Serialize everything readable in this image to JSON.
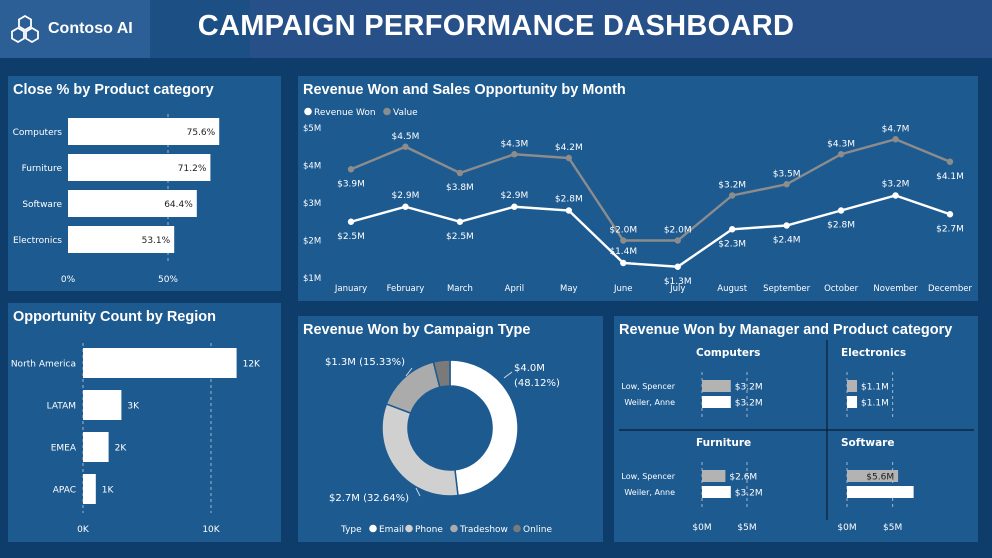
{
  "header": {
    "brand": "Contoso AI",
    "title": "CAMPAIGN PERFORMANCE DASHBOARD",
    "colors": {
      "background": "#0f3d6b",
      "panel": "#1d5a90",
      "header": "#1c4f84"
    }
  },
  "close_panel": {
    "title": "Close % by Product category",
    "chart_data": {
      "type": "bar",
      "orientation": "horizontal",
      "categories": [
        "Computers",
        "Furniture",
        "Software",
        "Electronics"
      ],
      "values": [
        75.6,
        71.2,
        64.4,
        53.1
      ],
      "value_labels": [
        "75.6%",
        "71.2%",
        "64.4%",
        "53.1%"
      ],
      "x_ticks": [
        "0%",
        "50%"
      ],
      "xlim": [
        0,
        100
      ],
      "grid": true
    }
  },
  "region_panel": {
    "title": "Opportunity Count by Region",
    "chart_data": {
      "type": "bar",
      "orientation": "horizontal",
      "categories": [
        "North America",
        "LATAM",
        "EMEA",
        "APAC"
      ],
      "values": [
        12,
        3,
        2,
        1
      ],
      "value_labels": [
        "12K",
        "3K",
        "2K",
        "1K"
      ],
      "x_ticks": [
        "0K",
        "10K"
      ],
      "xlim": [
        0,
        12.5
      ],
      "unit": "K",
      "grid": true
    }
  },
  "month_panel": {
    "title": "Revenue Won and Sales Opportunity by Month",
    "legend": [
      "Revenue Won",
      "Value"
    ],
    "chart_data": {
      "type": "line",
      "x": [
        "January",
        "February",
        "March",
        "April",
        "May",
        "June",
        "July",
        "August",
        "September",
        "October",
        "November",
        "December"
      ],
      "series": [
        {
          "name": "Revenue Won",
          "color": "#ffffff",
          "values": [
            2.5,
            2.9,
            2.5,
            2.9,
            2.8,
            1.4,
            1.3,
            2.3,
            2.4,
            2.8,
            3.2,
            2.7
          ],
          "labels": [
            "$2.5M",
            "$2.9M",
            "$2.5M",
            "$2.9M",
            "$2.8M",
            "$1.4M",
            "$1.3M",
            "$2.3M",
            "$2.4M",
            "$2.8M",
            "$3.2M",
            "$2.7M"
          ]
        },
        {
          "name": "Value",
          "color": "#8c8c8c",
          "values": [
            3.9,
            4.5,
            3.8,
            4.3,
            4.2,
            2.0,
            2.0,
            3.2,
            3.5,
            4.3,
            4.7,
            4.1
          ],
          "labels": [
            "$3.9M",
            "$4.5M",
            "$3.8M",
            "$4.3M",
            "$4.2M",
            "$2.0M",
            "$2.0M",
            "$3.2M",
            "$3.5M",
            "$4.3M",
            "$4.7M",
            "$4.1M"
          ]
        }
      ],
      "y_ticks": [
        "$1M",
        "$2M",
        "$3M",
        "$4M",
        "$5M"
      ],
      "y_tick_values": [
        1,
        2,
        3,
        4,
        5
      ],
      "ylim": [
        1,
        5
      ],
      "legend_position": "top-left",
      "grid": false
    }
  },
  "campaign_panel": {
    "title": "Revenue Won by Campaign Type",
    "legend_title": "Type",
    "legend": [
      "Email",
      "Phone",
      "Tradeshow",
      "Online"
    ],
    "chart_data": {
      "type": "pie",
      "donut": true,
      "categories": [
        "Email",
        "Phone",
        "Tradeshow",
        "Online"
      ],
      "values": [
        48.12,
        32.64,
        15.33,
        3.91
      ],
      "colors": [
        "#ffffff",
        "#d0d0d0",
        "#ababab",
        "#7a7a7a"
      ],
      "labels": [
        {
          "value": "$4.0M",
          "pct": "(48.12%)"
        },
        {
          "text": "$2.7M (32.64%)"
        },
        {
          "text": "$1.3M (15.33%)"
        }
      ],
      "legend_position": "bottom"
    }
  },
  "manager_panel": {
    "title": "Revenue Won by Manager and Product category",
    "chart_data": {
      "type": "bar",
      "orientation": "horizontal",
      "small_multiples": [
        {
          "category": "Computers",
          "managers": [
            "Low, Spencer",
            "Weiler, Anne"
          ],
          "values": [
            3.2,
            3.2
          ],
          "labels": [
            "$3.2M",
            "$3.2M"
          ]
        },
        {
          "category": "Electronics",
          "managers": [
            "Low, Spencer",
            "Weiler, Anne"
          ],
          "values": [
            1.1,
            1.1
          ],
          "labels": [
            "$1.1M",
            "$1.1M"
          ]
        },
        {
          "category": "Furniture",
          "managers": [
            "Low, Spencer",
            "Weiler, Anne"
          ],
          "values": [
            2.6,
            3.2
          ],
          "labels": [
            "$2.6M",
            "$3.2M"
          ]
        },
        {
          "category": "Software",
          "managers": [
            "Low, Spencer",
            "Weiler, Anne"
          ],
          "values": [
            5.6,
            7.3
          ],
          "labels": [
            "$5.6M",
            ""
          ]
        }
      ],
      "x_ticks": [
        "$0M",
        "$5M"
      ],
      "xlim": [
        0,
        8
      ],
      "series_colors": [
        "#b3b3b3",
        "#ffffff"
      ]
    }
  }
}
